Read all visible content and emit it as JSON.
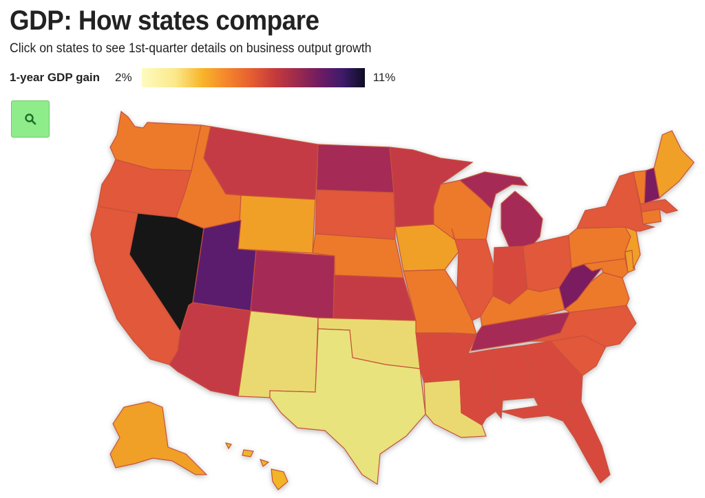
{
  "header": {
    "title": "GDP: How states compare",
    "subtitle": "Click on states to see 1st-quarter details on business output growth"
  },
  "legend": {
    "label": "1-year GDP gain",
    "min": "2%",
    "max": "11%"
  },
  "controls": {
    "search_icon": "search-icon"
  },
  "colors": {
    "dark": "#141216",
    "purple": "#5b1a6e",
    "plum": "#7a1f5e",
    "magenta": "#a52a55",
    "crimson": "#c43b44",
    "red": "#d8493e",
    "redorange": "#e2583a",
    "orange": "#ec7a2a",
    "amber": "#f0a027",
    "gold": "#f2b528",
    "yellow": "#ead970",
    "paleyellow": "#e8e37c",
    "button_green": "#8fec8b"
  },
  "states": [
    {
      "id": "WA",
      "color": "orange"
    },
    {
      "id": "OR",
      "color": "redorange"
    },
    {
      "id": "CA",
      "color": "redorange"
    },
    {
      "id": "NV",
      "color": "dark"
    },
    {
      "id": "ID",
      "color": "orange"
    },
    {
      "id": "MT",
      "color": "crimson"
    },
    {
      "id": "WY",
      "color": "amber"
    },
    {
      "id": "UT",
      "color": "purple"
    },
    {
      "id": "AZ",
      "color": "crimson"
    },
    {
      "id": "CO",
      "color": "magenta"
    },
    {
      "id": "NM",
      "color": "yellow"
    },
    {
      "id": "ND",
      "color": "magenta"
    },
    {
      "id": "SD",
      "color": "redorange"
    },
    {
      "id": "NE",
      "color": "orange"
    },
    {
      "id": "KS",
      "color": "crimson"
    },
    {
      "id": "OK",
      "color": "yellow"
    },
    {
      "id": "TX",
      "color": "paleyellow"
    },
    {
      "id": "MN",
      "color": "crimson"
    },
    {
      "id": "IA",
      "color": "amber"
    },
    {
      "id": "MO",
      "color": "orange"
    },
    {
      "id": "AR",
      "color": "red"
    },
    {
      "id": "LA",
      "color": "yellow"
    },
    {
      "id": "WI",
      "color": "orange"
    },
    {
      "id": "IL",
      "color": "redorange"
    },
    {
      "id": "MI",
      "color": "magenta"
    },
    {
      "id": "IN",
      "color": "red"
    },
    {
      "id": "OH",
      "color": "redorange"
    },
    {
      "id": "KY",
      "color": "orange"
    },
    {
      "id": "TN",
      "color": "magenta"
    },
    {
      "id": "MS",
      "color": "red"
    },
    {
      "id": "AL",
      "color": "red"
    },
    {
      "id": "GA",
      "color": "red"
    },
    {
      "id": "FL",
      "color": "red"
    },
    {
      "id": "SC",
      "color": "redorange"
    },
    {
      "id": "NC",
      "color": "redorange"
    },
    {
      "id": "VA",
      "color": "orange"
    },
    {
      "id": "WV",
      "color": "plum"
    },
    {
      "id": "PA",
      "color": "orange"
    },
    {
      "id": "NY",
      "color": "redorange"
    },
    {
      "id": "NJ",
      "color": "amber"
    },
    {
      "id": "MD",
      "color": "orange"
    },
    {
      "id": "DE",
      "color": "amber"
    },
    {
      "id": "CT",
      "color": "orange"
    },
    {
      "id": "MA",
      "color": "redorange"
    },
    {
      "id": "VT",
      "color": "orange"
    },
    {
      "id": "NH",
      "color": "plum"
    },
    {
      "id": "ME",
      "color": "amber"
    },
    {
      "id": "AK",
      "color": "amber"
    },
    {
      "id": "HI",
      "color": "gold"
    }
  ]
}
